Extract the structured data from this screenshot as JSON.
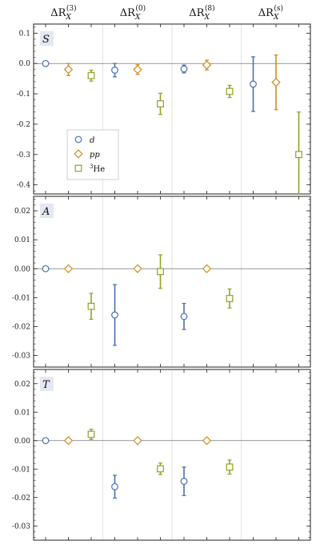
{
  "chart_data": {
    "type": "scatter",
    "columns": [
      {
        "base": "ΔR",
        "sub": "X",
        "sup": "(3)"
      },
      {
        "base": "ΔR",
        "sub": "X",
        "sup": "(0)"
      },
      {
        "base": "ΔR",
        "sub": "X",
        "sup": "(8)"
      },
      {
        "base": "ΔR",
        "sub": "X",
        "sup": "(s)"
      }
    ],
    "series_style": [
      {
        "key": "d",
        "marker": "circle",
        "color": "#4a6fb5"
      },
      {
        "key": "pp",
        "marker": "diamond",
        "color": "#d08a1e"
      },
      {
        "key": "3He",
        "marker": "square",
        "color": "#8ca52a"
      }
    ],
    "legend": {
      "placement": "inside-left of panel S",
      "entries": [
        {
          "series": "d",
          "label": "d",
          "italic": true
        },
        {
          "series": "pp",
          "label": "pp",
          "italic": true
        },
        {
          "series": "3He",
          "sup": "3",
          "label": "He",
          "italic": false
        }
      ]
    },
    "panels": [
      {
        "label": "S",
        "ylim": [
          -0.43,
          0.13
        ],
        "yticks": [
          0.1,
          0.0,
          -0.1,
          -0.2,
          -0.3,
          -0.4
        ],
        "tick_labels": [
          "0.1",
          "0.0",
          "-0.1",
          "-0.2",
          "-0.3",
          "-0.4"
        ],
        "points": [
          {
            "col": 0,
            "series": "d",
            "y": 0.0,
            "err": 0.0
          },
          {
            "col": 0,
            "series": "pp",
            "y": -0.02,
            "err": 0.02
          },
          {
            "col": 0,
            "series": "3He",
            "y": -0.04,
            "err": 0.018
          },
          {
            "col": 1,
            "series": "d",
            "y": -0.022,
            "err": 0.022
          },
          {
            "col": 1,
            "series": "pp",
            "y": -0.02,
            "err": 0.016
          },
          {
            "col": 1,
            "series": "3He",
            "y": -0.133,
            "err": 0.035
          },
          {
            "col": 2,
            "series": "d",
            "y": -0.018,
            "err": 0.013
          },
          {
            "col": 2,
            "series": "pp",
            "y": -0.005,
            "err": 0.016
          },
          {
            "col": 2,
            "series": "3He",
            "y": -0.092,
            "err": 0.02
          },
          {
            "col": 3,
            "series": "d",
            "y": -0.068,
            "err": 0.09
          },
          {
            "col": 3,
            "series": "pp",
            "y": -0.062,
            "err": 0.09
          },
          {
            "col": 3,
            "series": "3He",
            "y": -0.3,
            "err": 0.14
          }
        ]
      },
      {
        "label": "A",
        "ylim": [
          -0.034,
          0.025
        ],
        "yticks": [
          0.02,
          0.01,
          0.0,
          -0.01,
          -0.02,
          -0.03
        ],
        "tick_labels": [
          "0.02",
          "0.01",
          "0.00",
          "-0.01",
          "-0.02",
          "-0.03"
        ],
        "points": [
          {
            "col": 0,
            "series": "d",
            "y": 0.0,
            "err": 0.0
          },
          {
            "col": 0,
            "series": "pp",
            "y": 0.0,
            "err": 0.0
          },
          {
            "col": 0,
            "series": "3He",
            "y": -0.013,
            "err": 0.0045
          },
          {
            "col": 1,
            "series": "d",
            "y": -0.016,
            "err": 0.0105
          },
          {
            "col": 1,
            "series": "pp",
            "y": 0.0,
            "err": 0.0
          },
          {
            "col": 1,
            "series": "3He",
            "y": -0.001,
            "err": 0.0058
          },
          {
            "col": 2,
            "series": "d",
            "y": -0.0165,
            "err": 0.0045
          },
          {
            "col": 2,
            "series": "pp",
            "y": 0.0,
            "err": 0.0
          },
          {
            "col": 2,
            "series": "3He",
            "y": -0.0103,
            "err": 0.0033
          }
        ]
      },
      {
        "label": "T",
        "ylim": [
          -0.035,
          0.025
        ],
        "yticks": [
          0.02,
          0.01,
          0.0,
          -0.01,
          -0.02,
          -0.03
        ],
        "tick_labels": [
          "0.02",
          "0.01",
          "0.00",
          "-0.01",
          "-0.02",
          "-0.03"
        ],
        "points": [
          {
            "col": 0,
            "series": "d",
            "y": 0.0,
            "err": 0.0
          },
          {
            "col": 0,
            "series": "pp",
            "y": 0.0,
            "err": 0.0
          },
          {
            "col": 0,
            "series": "3He",
            "y": 0.0022,
            "err": 0.0018
          },
          {
            "col": 1,
            "series": "d",
            "y": -0.0162,
            "err": 0.004
          },
          {
            "col": 1,
            "series": "pp",
            "y": 0.0,
            "err": 0.0
          },
          {
            "col": 1,
            "series": "3He",
            "y": -0.0099,
            "err": 0.002
          },
          {
            "col": 2,
            "series": "d",
            "y": -0.0143,
            "err": 0.005
          },
          {
            "col": 2,
            "series": "pp",
            "y": 0.0,
            "err": 0.0
          },
          {
            "col": 2,
            "series": "3He",
            "y": -0.0093,
            "err": 0.0025
          }
        ]
      }
    ]
  }
}
